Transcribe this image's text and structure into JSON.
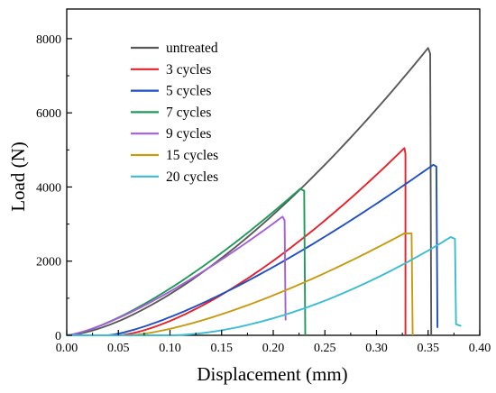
{
  "chart_data": {
    "type": "line",
    "xlabel": "Displacement (mm)",
    "ylabel": "Load (N)",
    "xlim": [
      0,
      0.4
    ],
    "ylim": [
      0,
      8800
    ],
    "xticks": [
      "0.00",
      "0.05",
      "0.10",
      "0.15",
      "0.20",
      "0.25",
      "0.30",
      "0.35",
      "0.40"
    ],
    "yticks": [
      "0",
      "2000",
      "4000",
      "6000",
      "8000"
    ],
    "legend_position": "top-left",
    "grid": false,
    "series": [
      {
        "name": "untreated",
        "color": "#595959",
        "exp": 1.55,
        "x0": 0.0,
        "xpeak": 0.35,
        "ypeak": 7750,
        "drop": [
          [
            0.352,
            7600
          ],
          [
            0.353,
            0
          ]
        ]
      },
      {
        "name": "3 cycles",
        "color": "#e8202a",
        "exp": 1.5,
        "x0": 0.05,
        "xpeak": 0.327,
        "ypeak": 5050,
        "drop": [
          [
            0.328,
            4900
          ],
          [
            0.328,
            0
          ]
        ]
      },
      {
        "name": "5 cycles",
        "color": "#1f4fc4",
        "exp": 1.35,
        "x0": 0.04,
        "xpeak": 0.355,
        "ypeak": 4600,
        "drop": [
          [
            0.358,
            4550
          ],
          [
            0.359,
            200
          ]
        ]
      },
      {
        "name": "7 cycles",
        "color": "#1f9a5a",
        "exp": 1.4,
        "x0": 0.0,
        "xpeak": 0.226,
        "ypeak": 3950,
        "drop": [
          [
            0.23,
            3900
          ],
          [
            0.231,
            0
          ]
        ]
      },
      {
        "name": "9 cycles",
        "color": "#a45fd6",
        "exp": 1.35,
        "x0": 0.0,
        "xpeak": 0.209,
        "ypeak": 3200,
        "drop": [
          [
            0.211,
            3100
          ],
          [
            0.212,
            400
          ]
        ]
      },
      {
        "name": "15 cycles",
        "color": "#c89a12",
        "exp": 1.45,
        "x0": 0.06,
        "xpeak": 0.327,
        "ypeak": 2750,
        "drop": [
          [
            0.334,
            2750
          ],
          [
            0.335,
            0
          ]
        ]
      },
      {
        "name": "20 cycles",
        "color": "#3bbcd2",
        "exp": 1.75,
        "x0": 0.1,
        "xpeak": 0.372,
        "ypeak": 2650,
        "drop": [
          [
            0.376,
            2600
          ],
          [
            0.377,
            300
          ],
          [
            0.382,
            250
          ]
        ]
      }
    ]
  }
}
